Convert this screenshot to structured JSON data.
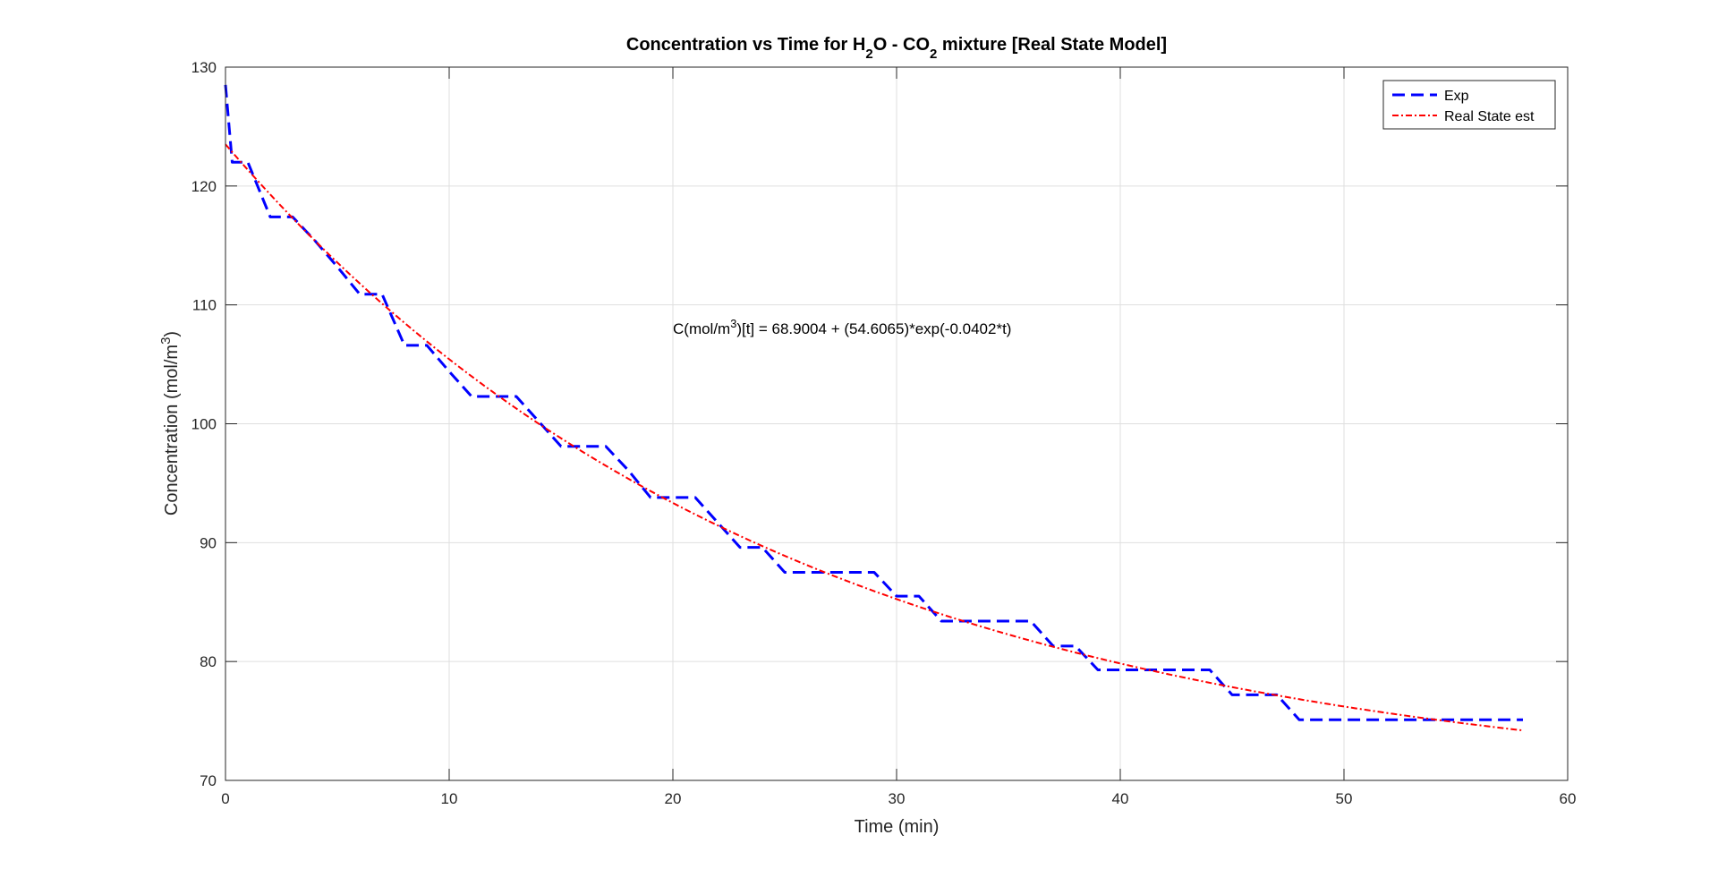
{
  "chart_data": {
    "type": "line",
    "title": {
      "parts": [
        {
          "text": "Concentration vs Time for H"
        },
        {
          "text": "2",
          "sub": true
        },
        {
          "text": "O - CO"
        },
        {
          "text": "2",
          "sub": true
        },
        {
          "text": " mixture [Real State Model]"
        }
      ]
    },
    "xlabel": "Time (min)",
    "ylabel": {
      "parts": [
        {
          "text": "Concentration (mol/m"
        },
        {
          "text": "3",
          "sup": true
        },
        {
          "text": ")"
        }
      ]
    },
    "xlim": [
      0,
      60
    ],
    "ylim": [
      70,
      130
    ],
    "xticks": [
      0,
      10,
      20,
      30,
      40,
      50,
      60
    ],
    "yticks": [
      70,
      80,
      90,
      100,
      110,
      120,
      130
    ],
    "grid": true,
    "legend_position": "top-right",
    "annotation": {
      "x": 20,
      "y": 108,
      "parts": [
        {
          "text": "C(mol/m"
        },
        {
          "text": "3",
          "sup": true
        },
        {
          "text": ")[t] = 68.9004 + (54.6065)*exp(-0.0402*t)"
        }
      ]
    },
    "series": [
      {
        "name": "Exp",
        "color": "#0000ff",
        "style": "dashed",
        "x": [
          0,
          0.3,
          1,
          2,
          3,
          4,
          5,
          6,
          7,
          8,
          9,
          10,
          11,
          13,
          14,
          15,
          17,
          18,
          19,
          21,
          22,
          23,
          24,
          25,
          27,
          29,
          30,
          31,
          32,
          33,
          34,
          36,
          37,
          38,
          39,
          41,
          42,
          44,
          45,
          46,
          47,
          48,
          58
        ],
        "y": [
          128.5,
          122,
          122,
          117.4,
          117.4,
          115.4,
          113.2,
          110.9,
          110.9,
          106.6,
          106.6,
          104.4,
          102.3,
          102.3,
          100.2,
          98.1,
          98.1,
          96.1,
          93.8,
          93.8,
          91.7,
          89.6,
          89.6,
          87.5,
          87.5,
          87.5,
          85.5,
          85.5,
          83.4,
          83.4,
          83.4,
          83.4,
          81.3,
          81.3,
          79.3,
          79.3,
          79.3,
          79.3,
          77.2,
          77.2,
          77.2,
          75.1,
          75.1
        ]
      },
      {
        "name": "Real State est",
        "color": "#ff0000",
        "style": "dashdot",
        "model": {
          "a": 68.9004,
          "b": 54.6065,
          "k": 0.0402,
          "x_start": 0,
          "x_end": 58
        }
      }
    ]
  }
}
